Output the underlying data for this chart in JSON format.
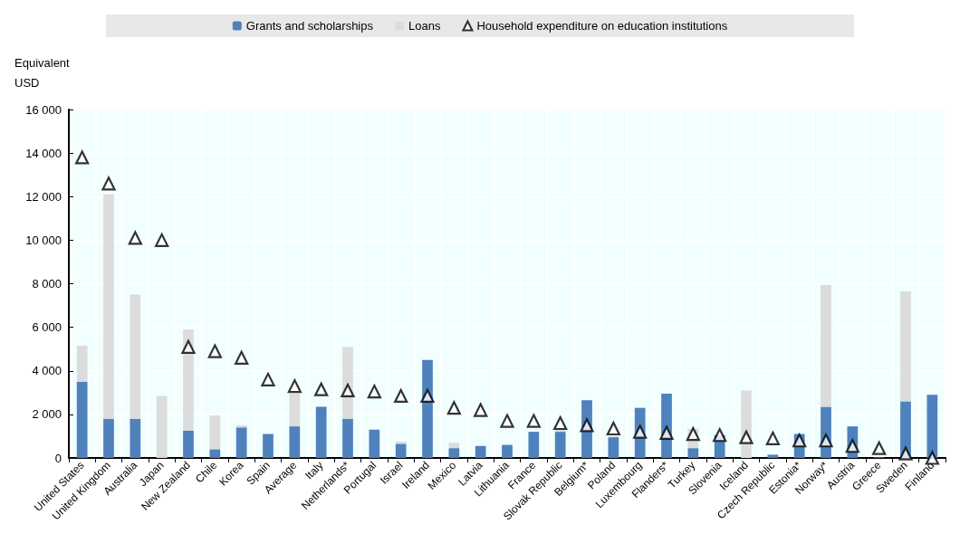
{
  "chart_data": {
    "type": "bar",
    "stacked": true,
    "ylabel": "Equivalent USD",
    "categories": [
      "United States",
      "United Kingdom",
      "Australia",
      "Japan",
      "New Zealand",
      "Chile",
      "Korea",
      "Spain",
      "Average",
      "Italy",
      "Netherlands*",
      "Portugal",
      "Israel",
      "Ireland",
      "Mexico",
      "Latvia",
      "Lithuania",
      "France",
      "Slovak Republic",
      "Belgium*",
      "Poland",
      "Luxembourg",
      "Flanders*",
      "Turkey",
      "Slovenia",
      "Iceland",
      "Czech Republic",
      "Estonia*",
      "Norway*",
      "Austria",
      "Greece",
      "Sweden",
      "Finland"
    ],
    "series": [
      {
        "name": "Grants and scholarships",
        "color": "#4f81bd",
        "values": [
          3500,
          1800,
          1800,
          0,
          1250,
          400,
          1400,
          1100,
          1450,
          2350,
          1800,
          1300,
          650,
          4500,
          450,
          550,
          600,
          1200,
          1200,
          2650,
          950,
          2300,
          2950,
          450,
          1050,
          0,
          150,
          1100,
          2350,
          1450,
          30,
          2600,
          2900
        ]
      },
      {
        "name": "Loans",
        "color": "#dcdcdc",
        "values": [
          1650,
          10300,
          5700,
          2850,
          4650,
          1550,
          100,
          0,
          1500,
          null,
          3300,
          null,
          100,
          0,
          250,
          0,
          0,
          0,
          100,
          0,
          50,
          0,
          0,
          900,
          0,
          3100,
          0,
          0,
          5600,
          0,
          0,
          5050,
          0
        ]
      },
      {
        "name": "Household expenditure on education institutions",
        "type": "scatter",
        "marker": "triangle",
        "color": "#ffffff",
        "values": [
          13800,
          12600,
          10100,
          10000,
          5100,
          4900,
          4600,
          3600,
          3300,
          3150,
          3100,
          3050,
          2850,
          2850,
          2300,
          2200,
          1700,
          1700,
          1600,
          1500,
          1350,
          1200,
          1150,
          1100,
          1050,
          950,
          900,
          800,
          800,
          550,
          450,
          200,
          0
        ]
      }
    ],
    "ylim": [
      0,
      16000
    ],
    "yticks": [
      {
        "value": 0,
        "label": "0"
      },
      {
        "value": 2000,
        "label": "2 000"
      },
      {
        "value": 4000,
        "label": "4 000"
      },
      {
        "value": 6000,
        "label": "6 000"
      },
      {
        "value": 8000,
        "label": "8 000"
      },
      {
        "value": 10000,
        "label": "10 000"
      },
      {
        "value": 12000,
        "label": "12 000"
      },
      {
        "value": 14000,
        "label": "14 000"
      },
      {
        "value": 16000,
        "label": "16 000"
      }
    ],
    "grid": true,
    "legend": "top"
  }
}
